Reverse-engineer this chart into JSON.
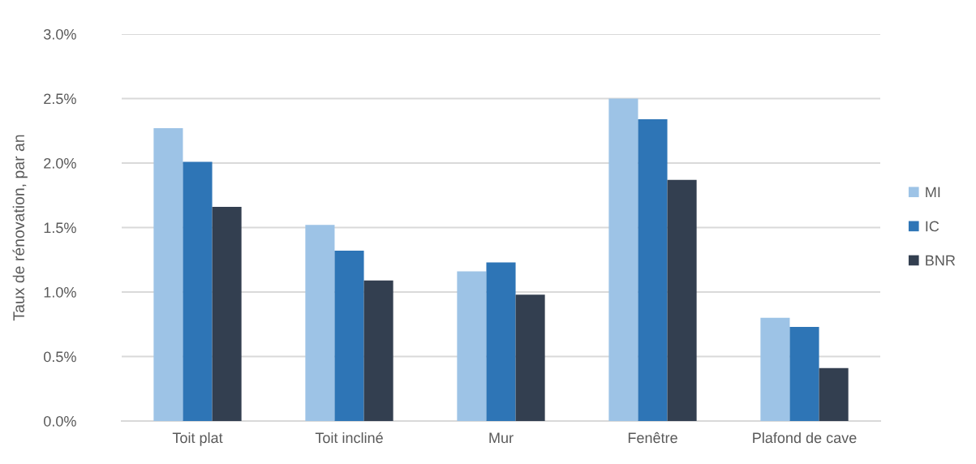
{
  "chart_data": {
    "type": "bar",
    "ylabel": "Taux de rénovation, par an",
    "categories": [
      "Toit plat",
      "Toit incliné",
      "Mur",
      "Fenêtre",
      "Plafond de cave"
    ],
    "series": [
      {
        "name": "MI",
        "color": "#9dc3e6",
        "values": [
          2.27,
          1.52,
          1.16,
          2.5,
          0.8
        ]
      },
      {
        "name": "IC",
        "color": "#2e75b6",
        "values": [
          2.01,
          1.32,
          1.23,
          2.34,
          0.73
        ]
      },
      {
        "name": "BNR",
        "color": "#333f50",
        "values": [
          1.66,
          1.09,
          0.98,
          1.87,
          0.41
        ]
      }
    ],
    "ylim": [
      0,
      3
    ],
    "yticks": [
      {
        "value": 0,
        "label": "0.0%"
      },
      {
        "value": 0.5,
        "label": "0.5%"
      },
      {
        "value": 1,
        "label": "1.0%"
      },
      {
        "value": 1.5,
        "label": "1.5%"
      },
      {
        "value": 2,
        "label": "2.0%"
      },
      {
        "value": 2.5,
        "label": "2.5%"
      },
      {
        "value": 3,
        "label": "3.0%"
      }
    ],
    "grid": "y",
    "legend": "right"
  }
}
